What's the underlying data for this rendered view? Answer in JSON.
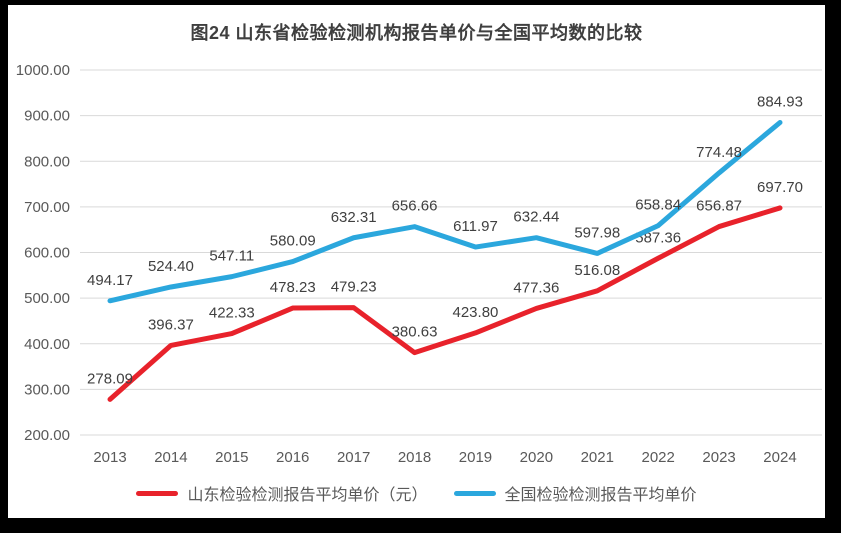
{
  "page": {
    "background_color": "#000000",
    "card_background_color": "#ffffff"
  },
  "chart_data": {
    "type": "line",
    "title": "图24  山东省检验检测机构报告单价与全国平均数的比较",
    "categories": [
      "2013",
      "2014",
      "2015",
      "2016",
      "2017",
      "2018",
      "2019",
      "2020",
      "2021",
      "2022",
      "2023",
      "2024"
    ],
    "series": [
      {
        "name": "山东检验检测报告平均单价（元）",
        "color": "#e8222b",
        "values": [
          278.09,
          396.37,
          422.33,
          478.23,
          479.23,
          380.63,
          423.8,
          477.36,
          516.08,
          587.36,
          656.87,
          697.7
        ]
      },
      {
        "name": "全国检验检测报告平均单价",
        "color": "#2ba7dd",
        "values": [
          494.17,
          524.4,
          547.11,
          580.09,
          632.31,
          656.66,
          611.97,
          632.44,
          597.98,
          658.84,
          774.48,
          884.93
        ]
      }
    ],
    "ylim": [
      200,
      1000
    ],
    "ytick_step": 100,
    "ytick_format": "two-decimals",
    "grid": "horizontal-only",
    "gridline_color": "#d9d9d9",
    "tick_label_color": "#595959",
    "data_label_color": "#404040",
    "data_labels": true,
    "legend_position": "bottom"
  }
}
